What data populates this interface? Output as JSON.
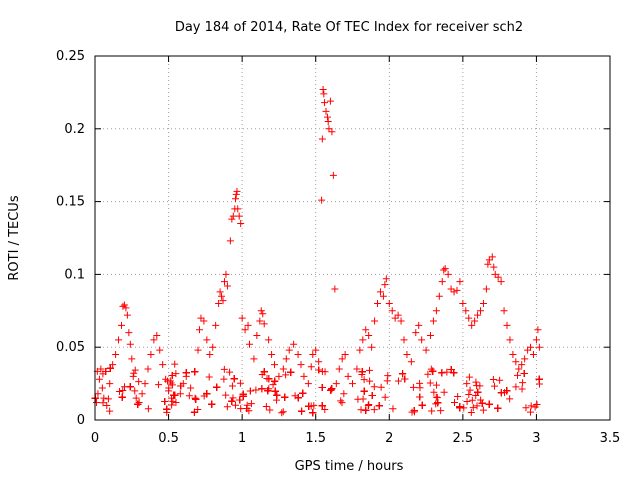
{
  "chart_data": {
    "type": "scatter",
    "title": "Day 184 of 2014, Rate Of TEC Index for receiver sch2",
    "xlabel": "GPS time / hours",
    "ylabel": "ROTI / TECUs",
    "xlim": [
      0,
      3.5
    ],
    "ylim": [
      0,
      0.25
    ],
    "xticks": [
      "0",
      "0.5",
      "1",
      "1.5",
      "2",
      "2.5",
      "3",
      "3.5"
    ],
    "yticks": [
      "0",
      "0.05",
      "0.1",
      "0.15",
      "0.2",
      "0.25"
    ],
    "xtick_values": [
      0,
      0.5,
      1,
      1.5,
      2,
      2.5,
      3,
      3.5
    ],
    "ytick_values": [
      0,
      0.05,
      0.1,
      0.15,
      0.2,
      0.25
    ],
    "grid": true,
    "marker": "+",
    "color": "#ff0000",
    "series": [
      {
        "name": "ROTI",
        "points": [
          [
            0.01,
            0.012
          ],
          [
            0.02,
            0.018
          ],
          [
            0.03,
            0.028
          ],
          [
            0.04,
            0.035
          ],
          [
            0.05,
            0.022
          ],
          [
            0.06,
            0.015
          ],
          [
            0.08,
            0.01
          ],
          [
            0.1,
            0.025
          ],
          [
            0.12,
            0.038
          ],
          [
            0.14,
            0.045
          ],
          [
            0.16,
            0.055
          ],
          [
            0.18,
            0.065
          ],
          [
            0.19,
            0.078
          ],
          [
            0.2,
            0.079
          ],
          [
            0.21,
            0.077
          ],
          [
            0.22,
            0.072
          ],
          [
            0.23,
            0.06
          ],
          [
            0.24,
            0.052
          ],
          [
            0.25,
            0.042
          ],
          [
            0.26,
            0.03
          ],
          [
            0.27,
            0.02
          ],
          [
            0.28,
            0.015
          ],
          [
            0.3,
            0.012
          ],
          [
            0.32,
            0.018
          ],
          [
            0.34,
            0.025
          ],
          [
            0.36,
            0.035
          ],
          [
            0.38,
            0.045
          ],
          [
            0.4,
            0.055
          ],
          [
            0.42,
            0.058
          ],
          [
            0.44,
            0.048
          ],
          [
            0.46,
            0.038
          ],
          [
            0.48,
            0.028
          ],
          [
            0.5,
            0.02
          ],
          [
            0.52,
            0.015
          ],
          [
            0.55,
            0.012
          ],
          [
            0.58,
            0.018
          ],
          [
            0.6,
            0.025
          ],
          [
            0.62,
            0.03
          ],
          [
            0.65,
            0.022
          ],
          [
            0.68,
            0.015
          ],
          [
            0.7,
            0.048
          ],
          [
            0.71,
            0.062
          ],
          [
            0.72,
            0.07
          ],
          [
            0.74,
            0.068
          ],
          [
            0.76,
            0.055
          ],
          [
            0.78,
            0.045
          ],
          [
            0.8,
            0.05
          ],
          [
            0.82,
            0.065
          ],
          [
            0.84,
            0.08
          ],
          [
            0.85,
            0.088
          ],
          [
            0.86,
            0.085
          ],
          [
            0.87,
            0.082
          ],
          [
            0.88,
            0.095
          ],
          [
            0.89,
            0.1
          ],
          [
            0.9,
            0.092
          ],
          [
            0.92,
            0.123
          ],
          [
            0.93,
            0.138
          ],
          [
            0.94,
            0.14
          ],
          [
            0.95,
            0.145
          ],
          [
            0.955,
            0.152
          ],
          [
            0.96,
            0.155
          ],
          [
            0.965,
            0.157
          ],
          [
            0.97,
            0.145
          ],
          [
            0.98,
            0.14
          ],
          [
            0.99,
            0.135
          ],
          [
            1.0,
            0.07
          ],
          [
            1.02,
            0.062
          ],
          [
            1.04,
            0.065
          ],
          [
            1.05,
            0.052
          ],
          [
            1.08,
            0.042
          ],
          [
            1.1,
            0.058
          ],
          [
            1.12,
            0.068
          ],
          [
            1.13,
            0.075
          ],
          [
            1.14,
            0.073
          ],
          [
            1.15,
            0.066
          ],
          [
            1.18,
            0.055
          ],
          [
            1.2,
            0.045
          ],
          [
            1.22,
            0.038
          ],
          [
            1.25,
            0.03
          ],
          [
            1.28,
            0.035
          ],
          [
            1.3,
            0.042
          ],
          [
            1.32,
            0.048
          ],
          [
            1.35,
            0.052
          ],
          [
            1.38,
            0.045
          ],
          [
            1.4,
            0.038
          ],
          [
            1.42,
            0.03
          ],
          [
            1.45,
            0.025
          ],
          [
            1.48,
            0.045
          ],
          [
            1.5,
            0.048
          ],
          [
            1.52,
            0.04
          ],
          [
            1.54,
            0.151
          ],
          [
            1.545,
            0.193
          ],
          [
            1.55,
            0.227
          ],
          [
            1.555,
            0.224
          ],
          [
            1.56,
            0.218
          ],
          [
            1.57,
            0.212
          ],
          [
            1.58,
            0.208
          ],
          [
            1.585,
            0.205
          ],
          [
            1.59,
            0.2
          ],
          [
            1.6,
            0.219
          ],
          [
            1.61,
            0.198
          ],
          [
            1.62,
            0.168
          ],
          [
            1.63,
            0.09
          ],
          [
            1.64,
            0.025
          ],
          [
            1.66,
            0.035
          ],
          [
            1.68,
            0.042
          ],
          [
            1.7,
            0.045
          ],
          [
            1.72,
            0.03
          ],
          [
            1.75,
            0.025
          ],
          [
            1.78,
            0.035
          ],
          [
            1.8,
            0.048
          ],
          [
            1.82,
            0.055
          ],
          [
            1.84,
            0.062
          ],
          [
            1.86,
            0.058
          ],
          [
            1.88,
            0.05
          ],
          [
            1.9,
            0.068
          ],
          [
            1.92,
            0.08
          ],
          [
            1.94,
            0.088
          ],
          [
            1.96,
            0.085
          ],
          [
            1.97,
            0.093
          ],
          [
            1.98,
            0.097
          ],
          [
            2.0,
            0.08
          ],
          [
            2.02,
            0.075
          ],
          [
            2.04,
            0.07
          ],
          [
            2.06,
            0.072
          ],
          [
            2.08,
            0.068
          ],
          [
            2.1,
            0.055
          ],
          [
            2.12,
            0.045
          ],
          [
            2.15,
            0.04
          ],
          [
            2.18,
            0.06
          ],
          [
            2.2,
            0.065
          ],
          [
            2.22,
            0.055
          ],
          [
            2.25,
            0.048
          ],
          [
            2.28,
            0.058
          ],
          [
            2.3,
            0.068
          ],
          [
            2.32,
            0.075
          ],
          [
            2.34,
            0.085
          ],
          [
            2.36,
            0.095
          ],
          [
            2.37,
            0.103
          ],
          [
            2.38,
            0.104
          ],
          [
            2.4,
            0.1
          ],
          [
            2.42,
            0.09
          ],
          [
            2.44,
            0.088
          ],
          [
            2.46,
            0.089
          ],
          [
            2.48,
            0.095
          ],
          [
            2.5,
            0.08
          ],
          [
            2.52,
            0.075
          ],
          [
            2.54,
            0.07
          ],
          [
            2.56,
            0.065
          ],
          [
            2.58,
            0.068
          ],
          [
            2.6,
            0.072
          ],
          [
            2.62,
            0.075
          ],
          [
            2.64,
            0.08
          ],
          [
            2.66,
            0.09
          ],
          [
            2.67,
            0.107
          ],
          [
            2.68,
            0.11
          ],
          [
            2.7,
            0.112
          ],
          [
            2.71,
            0.105
          ],
          [
            2.72,
            0.1
          ],
          [
            2.74,
            0.098
          ],
          [
            2.76,
            0.095
          ],
          [
            2.78,
            0.075
          ],
          [
            2.8,
            0.065
          ],
          [
            2.82,
            0.055
          ],
          [
            2.84,
            0.045
          ],
          [
            2.86,
            0.04
          ],
          [
            2.88,
            0.035
          ],
          [
            2.9,
            0.038
          ],
          [
            2.92,
            0.042
          ],
          [
            2.94,
            0.048
          ],
          [
            2.96,
            0.05
          ],
          [
            2.98,
            0.045
          ],
          [
            3.0,
            0.055
          ],
          [
            3.01,
            0.062
          ],
          [
            3.02,
            0.05
          ]
        ]
      }
    ],
    "background_noise": {
      "x_range": [
        0,
        3.03
      ],
      "y_range": [
        0.005,
        0.035
      ],
      "approx_count": 1500
    }
  }
}
